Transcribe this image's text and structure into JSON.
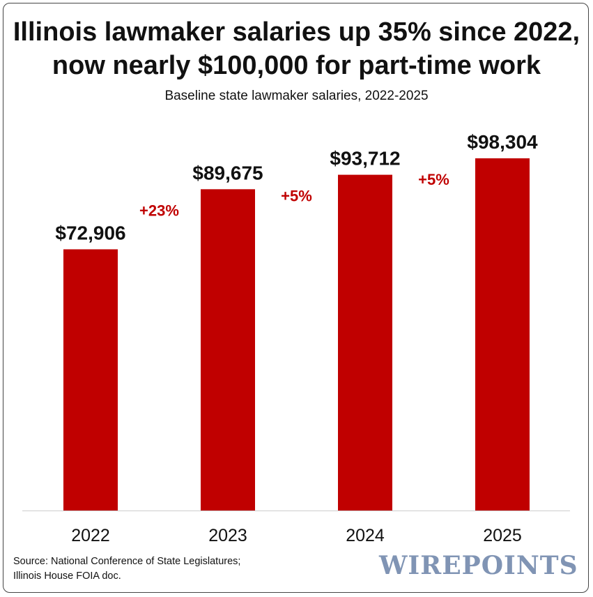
{
  "title_line1": "Illinois lawmaker salaries up 35% since 2022,",
  "title_line2": "now nearly $100,000 for part-time work",
  "subtitle": "Baseline state lawmaker salaries, 2022-2025",
  "source_line1": "Source: National Conference of State Legislatures;",
  "source_line2": "Illinois House FOIA doc.",
  "logo_text": "WIREPOINTS",
  "colors": {
    "bar": "#c00000",
    "change_label": "#c00000",
    "baseline": "#cccccc",
    "logo": "#8094b4"
  },
  "chart_data": {
    "type": "bar",
    "title": "Illinois lawmaker salaries up 35% since 2022, now nearly $100,000 for part-time work",
    "subtitle": "Baseline state lawmaker salaries, 2022-2025",
    "xlabel": "",
    "ylabel": "",
    "categories": [
      "2022",
      "2023",
      "2024",
      "2025"
    ],
    "values": [
      72906,
      89675,
      93712,
      98304
    ],
    "value_labels": [
      "$72,906",
      "$89,675",
      "$93,712",
      "$98,304"
    ],
    "changes": [
      "+23%",
      "+5%",
      "+5%"
    ],
    "ylim": [
      0,
      98304
    ],
    "grid": false,
    "legend": "none"
  }
}
